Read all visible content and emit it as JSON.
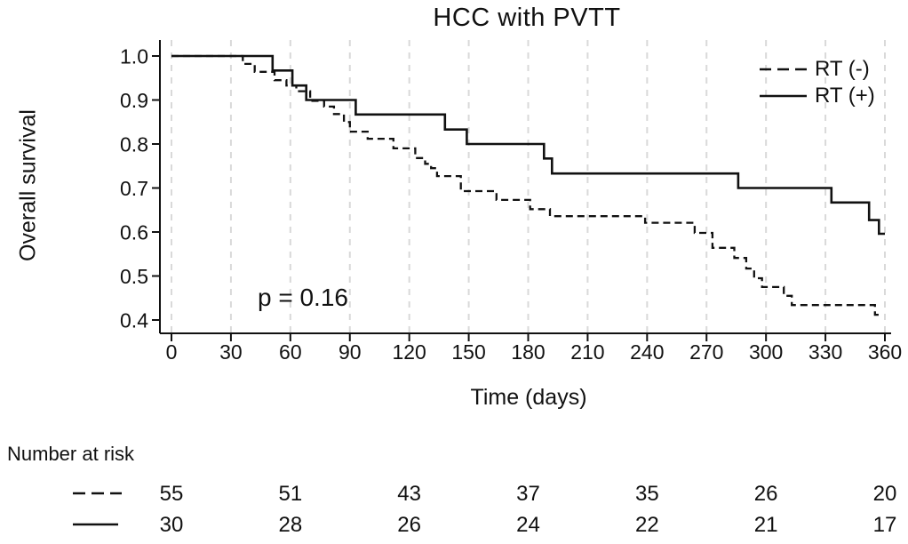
{
  "colors": {
    "line": "#111111",
    "grid": "#d9d9d9",
    "background": "#ffffff",
    "text": "#111111"
  },
  "chart_data": {
    "type": "line",
    "subtype": "kaplan-meier-step",
    "title": "HCC with PVTT",
    "xlabel": "Time (days)",
    "ylabel": "Overall survival",
    "xlim": [
      0,
      360
    ],
    "ylim": [
      0.4,
      1.0
    ],
    "xticks": [
      0,
      30,
      60,
      90,
      120,
      150,
      180,
      210,
      240,
      270,
      300,
      330,
      360
    ],
    "yticks": [
      1.0,
      0.9,
      0.8,
      0.7,
      0.6,
      0.5,
      0.4
    ],
    "grid": "vertical-dashed",
    "legend_position": "top-right",
    "p_annotation": {
      "text": "p = 0.16"
    },
    "series": [
      {
        "name": "RT (-)",
        "line_style": "dashed",
        "points": [
          [
            0,
            1.0
          ],
          [
            36,
            0.982
          ],
          [
            42,
            0.964
          ],
          [
            52,
            0.945
          ],
          [
            58,
            0.933
          ],
          [
            63,
            0.92
          ],
          [
            70,
            0.898
          ],
          [
            77,
            0.885
          ],
          [
            82,
            0.868
          ],
          [
            87,
            0.85
          ],
          [
            90,
            0.828
          ],
          [
            99,
            0.812
          ],
          [
            112,
            0.79
          ],
          [
            123,
            0.768
          ],
          [
            128,
            0.755
          ],
          [
            131,
            0.745
          ],
          [
            134,
            0.727
          ],
          [
            146,
            0.693
          ],
          [
            164,
            0.673
          ],
          [
            181,
            0.652
          ],
          [
            191,
            0.636
          ],
          [
            239,
            0.621
          ],
          [
            264,
            0.598
          ],
          [
            273,
            0.564
          ],
          [
            284,
            0.541
          ],
          [
            290,
            0.517
          ],
          [
            294,
            0.495
          ],
          [
            298,
            0.475
          ],
          [
            309,
            0.455
          ],
          [
            313,
            0.434
          ],
          [
            355,
            0.412
          ],
          [
            358,
            0.412
          ]
        ]
      },
      {
        "name": "RT (+)",
        "line_style": "solid",
        "points": [
          [
            0,
            1.0
          ],
          [
            51,
            0.967
          ],
          [
            61,
            0.933
          ],
          [
            68,
            0.9
          ],
          [
            93,
            0.867
          ],
          [
            138,
            0.833
          ],
          [
            149,
            0.8
          ],
          [
            188,
            0.767
          ],
          [
            192,
            0.733
          ],
          [
            286,
            0.7
          ],
          [
            333,
            0.667
          ],
          [
            352,
            0.627
          ],
          [
            357,
            0.596
          ],
          [
            360,
            0.596
          ]
        ]
      }
    ]
  },
  "risk_table": {
    "heading": "Number at risk",
    "times": [
      0,
      60,
      120,
      180,
      240,
      300,
      360
    ],
    "rows": [
      {
        "group": "RT (-)",
        "line_style": "dashed",
        "values": [
          55,
          51,
          43,
          37,
          35,
          26,
          20
        ]
      },
      {
        "group": "RT (+)",
        "line_style": "solid",
        "values": [
          30,
          28,
          26,
          24,
          22,
          21,
          17
        ]
      }
    ]
  }
}
